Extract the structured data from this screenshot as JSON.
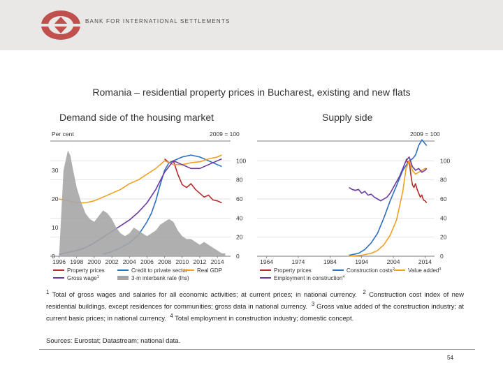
{
  "header": {
    "org_name": "BANK FOR INTERNATIONAL SETTLEMENTS"
  },
  "title": "Romania – residential property prices in Bucharest, existing and new flats",
  "page_number": "54",
  "notes": {
    "n1": "Total of gross wages and salaries for all economic activities; at current prices; in national currency.",
    "n2": "Construction cost index of new residential buildings, except residences for communities; gross data in national currency.",
    "n3": "Gross value added of the construction industry; at current basic prices; in national currency.",
    "n4": "Total employment in construction industry; domestic concept."
  },
  "sources": "Sources: Eurostat; Datastream; national data.",
  "colors": {
    "property": "#b22a2a",
    "credit": "#2f6fbf",
    "gdp": "#f0a020",
    "wage": "#6b3aa0",
    "interbank": "#a6a6a6",
    "construction_cost": "#2f6fbf",
    "value_added": "#f0a020",
    "employment": "#6b3aa0"
  },
  "chart_data": [
    {
      "type": "line",
      "title": "Demand side of the housing market",
      "ylabel_left": "Per cent",
      "ylabel_right": "2009 = 100",
      "ylim_left": [
        0,
        40
      ],
      "ylim_right": [
        0,
        120
      ],
      "yticks_left": [
        0,
        10,
        20,
        30
      ],
      "yticks_right": [
        0,
        20,
        40,
        60,
        80,
        100
      ],
      "xticks": [
        "1996",
        "1998",
        "2000",
        "2002",
        "2004",
        "2006",
        "2008",
        "2010",
        "2012",
        "2014"
      ],
      "xlim": [
        1995,
        2015.5
      ],
      "grid": true,
      "legend_position": "bottom",
      "series": [
        {
          "name": "Property prices",
          "axis": "right",
          "points": [
            [
              2008.0,
              102
            ],
            [
              2008.5,
              98
            ],
            [
              2009.0,
              100
            ],
            [
              2009.5,
              86
            ],
            [
              2010.0,
              75
            ],
            [
              2010.5,
              72
            ],
            [
              2011.0,
              76
            ],
            [
              2011.5,
              70
            ],
            [
              2012.0,
              66
            ],
            [
              2012.5,
              62
            ],
            [
              2013.0,
              64
            ],
            [
              2013.5,
              59
            ],
            [
              2014.0,
              58
            ],
            [
              2014.5,
              56
            ]
          ]
        },
        {
          "name": "Credit to private sector",
          "axis": "right",
          "points": [
            [
              2001,
              2
            ],
            [
              2002,
              5
            ],
            [
              2003,
              9
            ],
            [
              2004,
              14
            ],
            [
              2005,
              22
            ],
            [
              2006,
              36
            ],
            [
              2006.5,
              45
            ],
            [
              2007,
              58
            ],
            [
              2007.5,
              75
            ],
            [
              2008,
              90
            ],
            [
              2008.5,
              98
            ],
            [
              2009,
              100
            ],
            [
              2009.5,
              102
            ],
            [
              2010,
              104
            ],
            [
              2011,
              106
            ],
            [
              2012,
              104
            ],
            [
              2013,
              100
            ],
            [
              2014,
              96
            ],
            [
              2014.5,
              94
            ]
          ]
        },
        {
          "name": "Real GDP",
          "axis": "right",
          "points": [
            [
              1996,
              60
            ],
            [
              1997,
              58
            ],
            [
              1998,
              56
            ],
            [
              1999,
              56
            ],
            [
              2000,
              58
            ],
            [
              2001,
              62
            ],
            [
              2002,
              66
            ],
            [
              2003,
              70
            ],
            [
              2004,
              76
            ],
            [
              2005,
              80
            ],
            [
              2006,
              86
            ],
            [
              2007,
              92
            ],
            [
              2008,
              100
            ],
            [
              2009,
              96
            ],
            [
              2010,
              96
            ],
            [
              2011,
              98
            ],
            [
              2012,
              99
            ],
            [
              2013,
              102
            ],
            [
              2014,
              104
            ],
            [
              2014.5,
              106
            ]
          ]
        },
        {
          "name": "Gross wage",
          "note": "1",
          "axis": "right",
          "points": [
            [
              1996,
              2
            ],
            [
              1997,
              4
            ],
            [
              1998,
              6
            ],
            [
              1999,
              9
            ],
            [
              2000,
              14
            ],
            [
              2001,
              20
            ],
            [
              2002,
              26
            ],
            [
              2003,
              32
            ],
            [
              2004,
              38
            ],
            [
              2005,
              46
            ],
            [
              2006,
              56
            ],
            [
              2007,
              70
            ],
            [
              2008,
              88
            ],
            [
              2009,
              100
            ],
            [
              2010,
              96
            ],
            [
              2011,
              92
            ],
            [
              2012,
              92
            ],
            [
              2013,
              96
            ],
            [
              2014,
              100
            ],
            [
              2014.5,
              102
            ]
          ]
        },
        {
          "name": "3-m interbank rate (lhs)",
          "axis": "left",
          "style": "area",
          "points": [
            [
              1996,
              0
            ],
            [
              1996.5,
              30
            ],
            [
              1997.0,
              37
            ],
            [
              1997.3,
              35
            ],
            [
              1997.6,
              30
            ],
            [
              1998.0,
              24
            ],
            [
              1998.5,
              19
            ],
            [
              1999.0,
              15
            ],
            [
              1999.5,
              13
            ],
            [
              2000.0,
              12
            ],
            [
              2000.5,
              14
            ],
            [
              2001.0,
              16
            ],
            [
              2001.5,
              15
            ],
            [
              2002.0,
              13
            ],
            [
              2002.5,
              10
            ],
            [
              2003.0,
              8
            ],
            [
              2003.5,
              7
            ],
            [
              2004.0,
              8
            ],
            [
              2004.5,
              10
            ],
            [
              2005.0,
              9
            ],
            [
              2005.5,
              8
            ],
            [
              2006.0,
              7
            ],
            [
              2006.5,
              8
            ],
            [
              2007.0,
              9
            ],
            [
              2007.5,
              11
            ],
            [
              2008.0,
              12
            ],
            [
              2008.5,
              13
            ],
            [
              2009.0,
              12
            ],
            [
              2009.5,
              9
            ],
            [
              2010.0,
              7
            ],
            [
              2010.5,
              6
            ],
            [
              2011.0,
              6
            ],
            [
              2011.5,
              5
            ],
            [
              2012.0,
              4
            ],
            [
              2012.5,
              5
            ],
            [
              2013.0,
              4
            ],
            [
              2013.5,
              3
            ],
            [
              2014.0,
              2
            ],
            [
              2014.5,
              1
            ],
            [
              2014.9,
              1
            ],
            [
              2014.9,
              0
            ]
          ]
        }
      ]
    },
    {
      "type": "line",
      "title": "Supply side",
      "ylabel_right": "2009 = 100",
      "ylim_right": [
        0,
        120
      ],
      "yticks_right": [
        0,
        20,
        40,
        60,
        80,
        100
      ],
      "xticks": [
        "1964",
        "1974",
        "1984",
        "1994",
        "2004",
        "2014"
      ],
      "xlim": [
        1961,
        2017
      ],
      "grid": true,
      "legend_position": "bottom",
      "series": [
        {
          "name": "Property prices",
          "points": [
            [
              2008.0,
              102
            ],
            [
              2008.5,
              98
            ],
            [
              2009.0,
              100
            ],
            [
              2009.5,
              86
            ],
            [
              2010.0,
              75
            ],
            [
              2010.5,
              72
            ],
            [
              2011.0,
              76
            ],
            [
              2011.5,
              70
            ],
            [
              2012.0,
              66
            ],
            [
              2012.5,
              62
            ],
            [
              2013.0,
              64
            ],
            [
              2013.5,
              59
            ],
            [
              2014.0,
              58
            ],
            [
              2014.5,
              56
            ]
          ]
        },
        {
          "name": "Construction costs",
          "note": "2",
          "points": [
            [
              1990,
              1
            ],
            [
              1993,
              3
            ],
            [
              1995,
              7
            ],
            [
              1997,
              14
            ],
            [
              1999,
              24
            ],
            [
              2001,
              40
            ],
            [
              2003,
              58
            ],
            [
              2005,
              74
            ],
            [
              2007,
              90
            ],
            [
              2009,
              100
            ],
            [
              2010,
              102
            ],
            [
              2011,
              106
            ],
            [
              2012,
              116
            ],
            [
              2013,
              122
            ],
            [
              2014,
              118
            ],
            [
              2014.5,
              116
            ]
          ]
        },
        {
          "name": "Value added",
          "note": "3",
          "points": [
            [
              1990,
              0
            ],
            [
              1994,
              1
            ],
            [
              1997,
              3
            ],
            [
              1999,
              6
            ],
            [
              2001,
              12
            ],
            [
              2003,
              22
            ],
            [
              2005,
              38
            ],
            [
              2007,
              68
            ],
            [
              2008,
              92
            ],
            [
              2009,
              100
            ],
            [
              2010,
              90
            ],
            [
              2011,
              86
            ],
            [
              2012,
              88
            ],
            [
              2013,
              90
            ],
            [
              2014,
              92
            ],
            [
              2014.5,
              92
            ]
          ]
        },
        {
          "name": "Employment in construction",
          "note": "4",
          "points": [
            [
              1990,
              72
            ],
            [
              1991,
              70
            ],
            [
              1992,
              69
            ],
            [
              1993,
              70
            ],
            [
              1994,
              66
            ],
            [
              1995,
              68
            ],
            [
              1996,
              64
            ],
            [
              1997,
              65
            ],
            [
              1998,
              62
            ],
            [
              1999,
              60
            ],
            [
              2000,
              58
            ],
            [
              2001,
              60
            ],
            [
              2002,
              62
            ],
            [
              2003,
              66
            ],
            [
              2004,
              72
            ],
            [
              2005,
              78
            ],
            [
              2006,
              84
            ],
            [
              2007,
              92
            ],
            [
              2008,
              100
            ],
            [
              2009,
              104
            ],
            [
              2010,
              94
            ],
            [
              2011,
              90
            ],
            [
              2012,
              92
            ],
            [
              2013,
              88
            ],
            [
              2014,
              90
            ],
            [
              2014.5,
              92
            ]
          ]
        }
      ]
    }
  ]
}
